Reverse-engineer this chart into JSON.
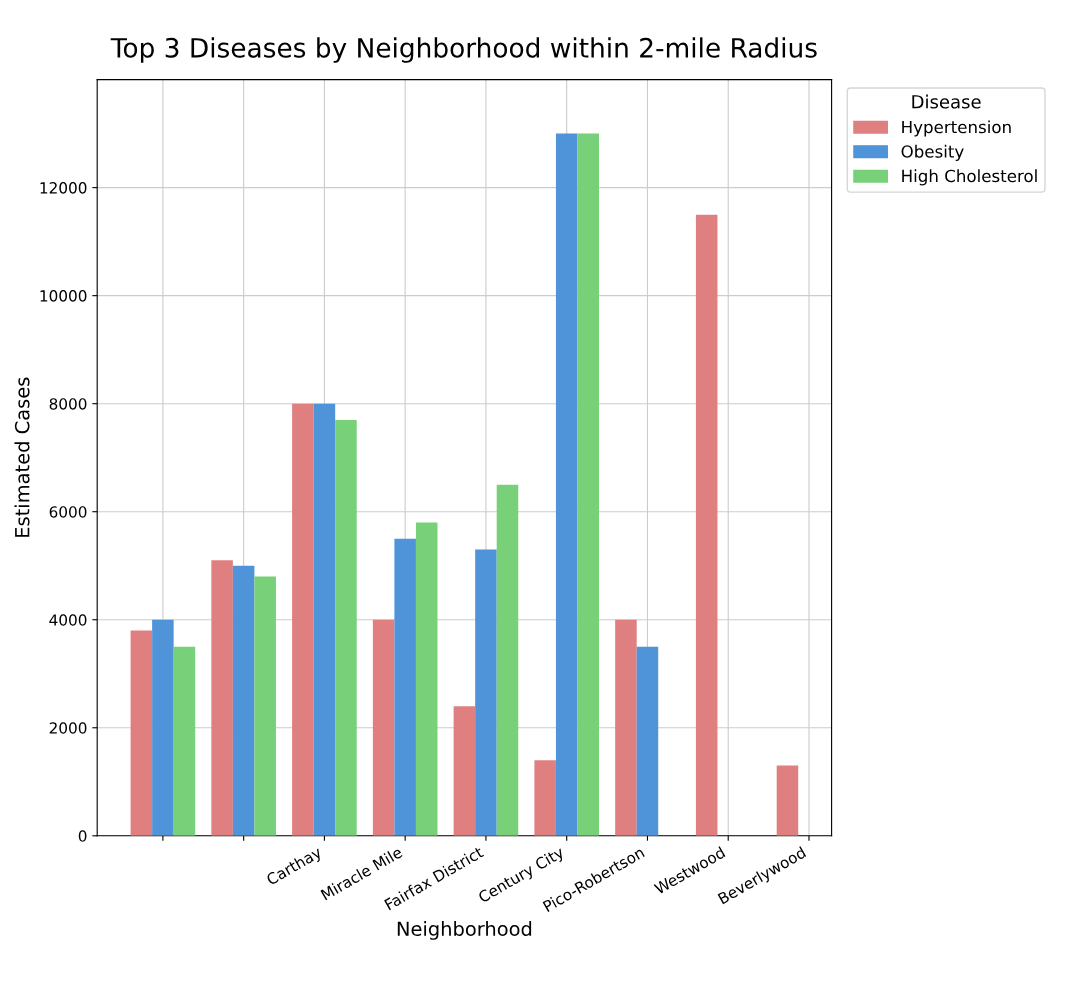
{
  "chart_data": {
    "type": "bar",
    "title": "Top 3 Diseases by Neighborhood within 2-mile Radius",
    "xlabel": "Neighborhood",
    "ylabel": "Estimated Cases",
    "legend_title": "Disease",
    "categories": [
      null,
      null,
      "Carthay",
      "Miracle Mile",
      "Fairfax District",
      "Century City",
      "Pico-Robertson",
      "Westwood",
      "Beverlywood"
    ],
    "series": [
      {
        "name": "Hypertension",
        "color": "#e07f80",
        "values": [
          3800,
          5100,
          8000,
          4000,
          2400,
          1400,
          4000,
          11500,
          1300
        ]
      },
      {
        "name": "Obesity",
        "color": "#4f94d8",
        "values": [
          4000,
          5000,
          8000,
          5500,
          5300,
          13000,
          3500,
          null,
          null
        ]
      },
      {
        "name": "High Cholesterol",
        "color": "#78d078",
        "values": [
          3500,
          4800,
          7700,
          5800,
          6500,
          13000,
          null,
          null,
          null
        ]
      }
    ],
    "ylim": [
      0,
      14000
    ],
    "yticks": [
      0,
      2000,
      4000,
      6000,
      8000,
      10000,
      12000
    ],
    "grid": true,
    "legend": "top right"
  }
}
